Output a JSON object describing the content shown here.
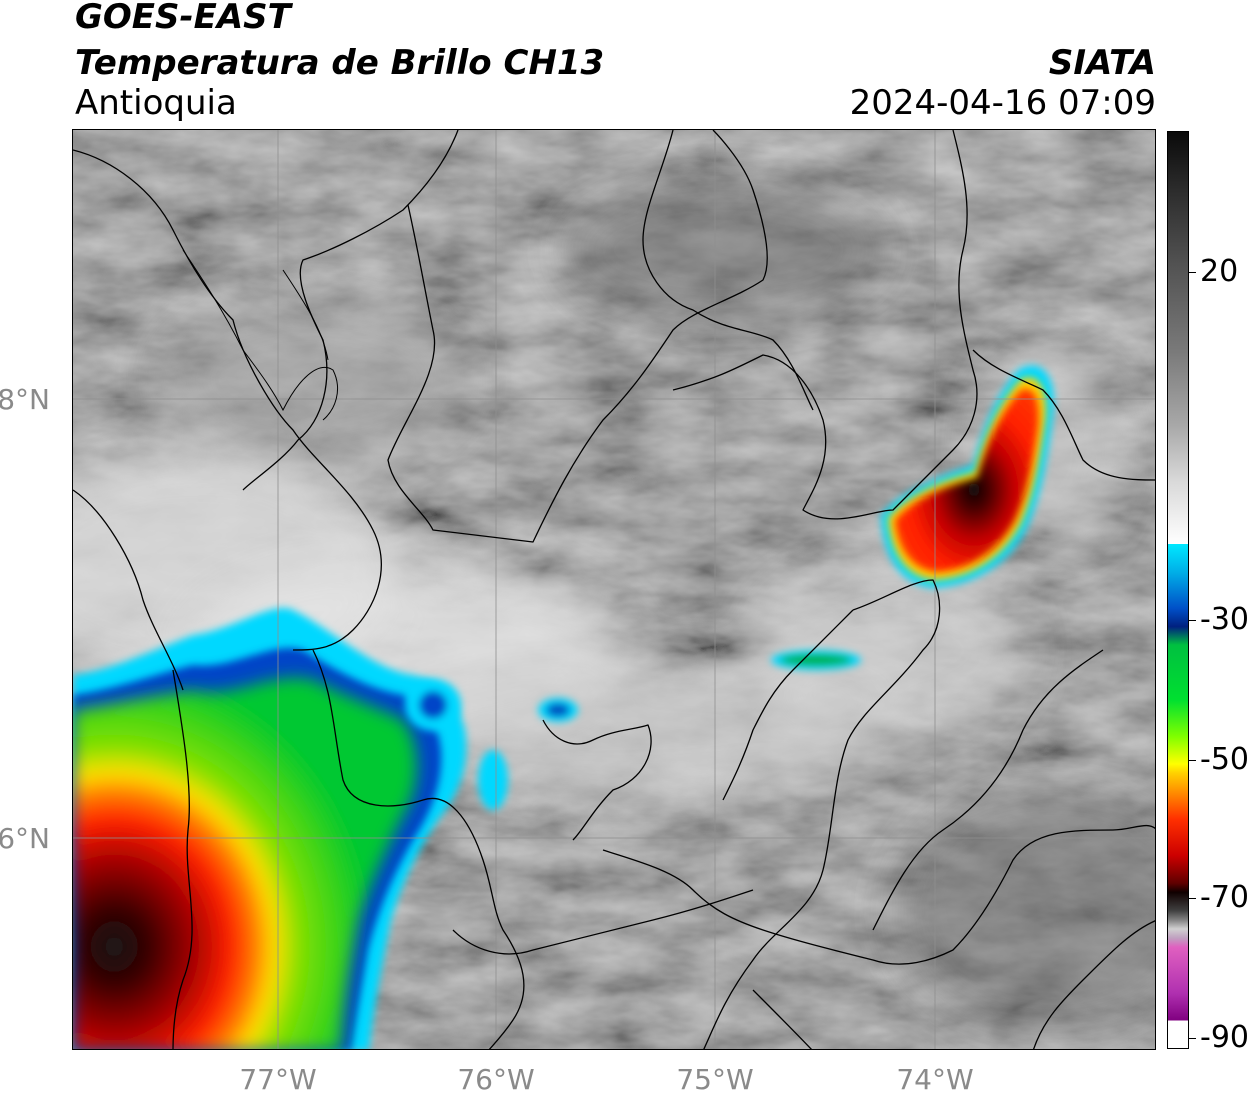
{
  "header": {
    "satellite": "GOES-EAST",
    "product": "Temperatura de Brillo CH13",
    "region": "Antioquia",
    "organization": "SIATA",
    "datetime": "2024-04-16 07:09"
  },
  "map": {
    "lat_labels": [
      "8°N",
      "6°N"
    ],
    "lon_labels": [
      "77°W",
      "76°W",
      "75°W",
      "74°W"
    ]
  },
  "colorbar": {
    "tick_labels": [
      "20",
      "-30",
      "-50",
      "-70",
      "-90"
    ]
  },
  "colors": {
    "cold_black": "#000000",
    "dark_red": "#7a0000",
    "red": "#e00000",
    "orange": "#ff6a00",
    "yellow": "#ffe000",
    "green": "#00d000",
    "blue": "#0040c0",
    "cyan": "#00d8ff",
    "magenta": "#d040c0"
  }
}
